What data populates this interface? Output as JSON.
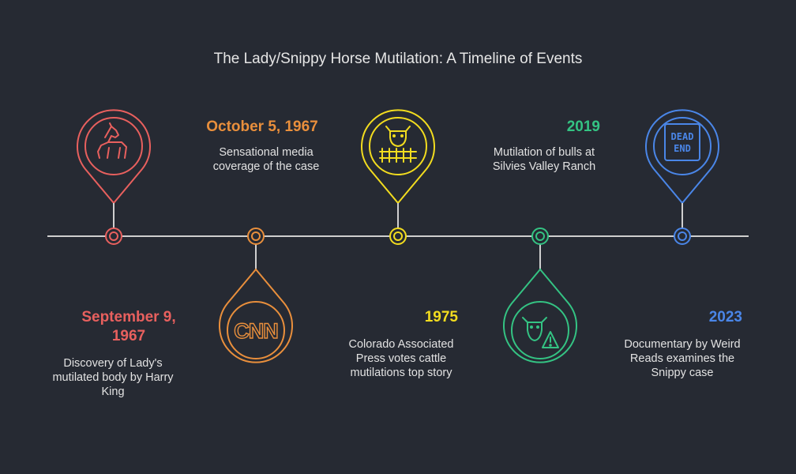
{
  "title": "The Lady/Snippy Horse Mutilation: A Timeline of Events",
  "events": [
    {
      "date": "September 9, 1967",
      "description": "Discovery of Lady's mutilated body by Harry King",
      "color": "#e8605e",
      "icon": "horse-icon"
    },
    {
      "date": "October 5, 1967",
      "description": "Sensational media coverage of the case",
      "color": "#e98f3c",
      "icon": "cnn-logo-icon",
      "icon_text": "CNN"
    },
    {
      "date": "1975",
      "description": "Colorado Associated Press votes cattle mutilations top story",
      "color": "#f2dc1f",
      "icon": "cow-fence-icon"
    },
    {
      "date": "2019",
      "description": "Mutilation of bulls at Silvies Valley Ranch",
      "color": "#34c383",
      "icon": "cow-warning-icon"
    },
    {
      "date": "2023",
      "description": "Documentary by Weird Reads examines the Snippy case",
      "color": "#4a86e8",
      "icon": "dead-end-sign-icon",
      "icon_text": [
        "DEAD",
        "END"
      ]
    }
  ],
  "line_color": "#cfcfcf"
}
